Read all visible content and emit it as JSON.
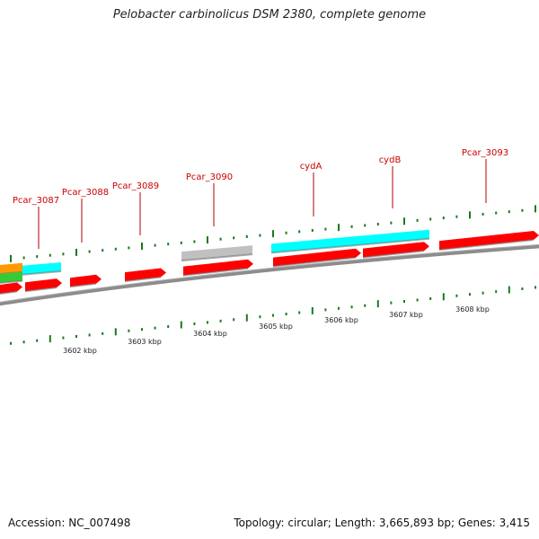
{
  "title": "Pelobacter carbinolicus DSM 2380, complete genome",
  "accession_text": "Accession: NC_007498",
  "summary_text": "Topology: circular; Length: 3,665,893 bp; Genes: 3,415",
  "colors": {
    "backbone": "#808080",
    "tick": "#1a7a1a",
    "gene_label": "#cc0000",
    "gene_red": "#ff0000",
    "gene_cyan": "#00ffff",
    "gene_gray": "#c0c0c0",
    "gene_orange": "#ff9900",
    "gene_green": "#33cc33"
  },
  "gene_labels": [
    {
      "id": "Pcar_3087",
      "text": "Pcar_3087"
    },
    {
      "id": "Pcar_3088",
      "text": "Pcar_3088"
    },
    {
      "id": "Pcar_3089",
      "text": "Pcar_3089"
    },
    {
      "id": "Pcar_3090",
      "text": "Pcar_3090"
    },
    {
      "id": "cydA",
      "text": "cydA"
    },
    {
      "id": "cydB",
      "text": "cydB"
    },
    {
      "id": "Pcar_3093",
      "text": "Pcar_3093"
    }
  ],
  "kbp_labels": [
    "3602 kbp",
    "3603 kbp",
    "3604 kbp",
    "3605 kbp",
    "3606 kbp",
    "3607 kbp",
    "3608 kbp"
  ]
}
